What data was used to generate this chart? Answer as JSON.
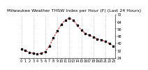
{
  "title": "Milwaukee Weather THSW Index per Hour (F) (Last 24 Hours)",
  "hours": [
    0,
    1,
    2,
    3,
    4,
    5,
    6,
    7,
    8,
    9,
    10,
    11,
    12,
    13,
    14,
    15,
    16,
    17,
    18,
    19,
    20,
    21,
    22,
    23
  ],
  "values": [
    34,
    32,
    30,
    29,
    28,
    29,
    31,
    37,
    46,
    54,
    61,
    66,
    68,
    66,
    60,
    55,
    51,
    49,
    47,
    45,
    44,
    42,
    40,
    37
  ],
  "line_color": "#dd0000",
  "marker_color": "#000000",
  "bg_color": "#ffffff",
  "title_bg": "#808080",
  "title_fg": "#000000",
  "grid_color": "#aaaaaa",
  "ylim": [
    24,
    72
  ],
  "yticks": [
    24,
    32,
    40,
    48,
    56,
    64,
    72
  ],
  "ytick_labels": [
    "24",
    "32",
    "40",
    "48",
    "56",
    "64",
    "72"
  ],
  "vgrid_positions": [
    0,
    3,
    6,
    9,
    12,
    15,
    18,
    21
  ],
  "title_fontsize": 4.5,
  "axis_fontsize": 3.8,
  "line_width": 0.7,
  "marker_size": 1.5
}
